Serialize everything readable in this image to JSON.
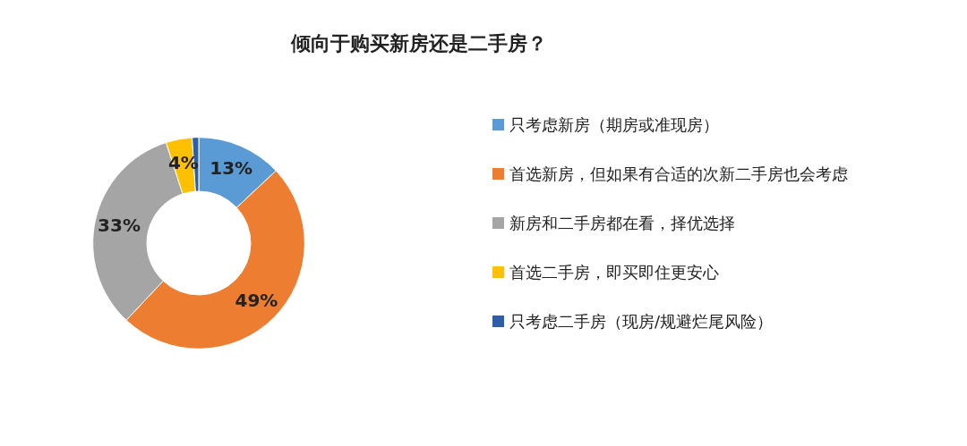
{
  "chart_data": {
    "type": "donut",
    "title": "倾向于购买新房还是二手房？",
    "categories": [
      "只考虑新房（期房或准现房）",
      "首选新房，但如果有合适的次新二手房也会考虑",
      "新房和二手房都在看，择优选择",
      "首选二手房，即买即住更安心",
      "只考虑二手房（现房/规避烂尾风险）"
    ],
    "values": [
      13,
      49,
      33,
      4,
      1
    ],
    "colors": [
      "#5b9bd5",
      "#ed7d31",
      "#a5a5a5",
      "#ffc000",
      "#2e5ea8"
    ],
    "value_labels": [
      "13%",
      "49%",
      "33%",
      "4%",
      null
    ],
    "legend": "right"
  }
}
